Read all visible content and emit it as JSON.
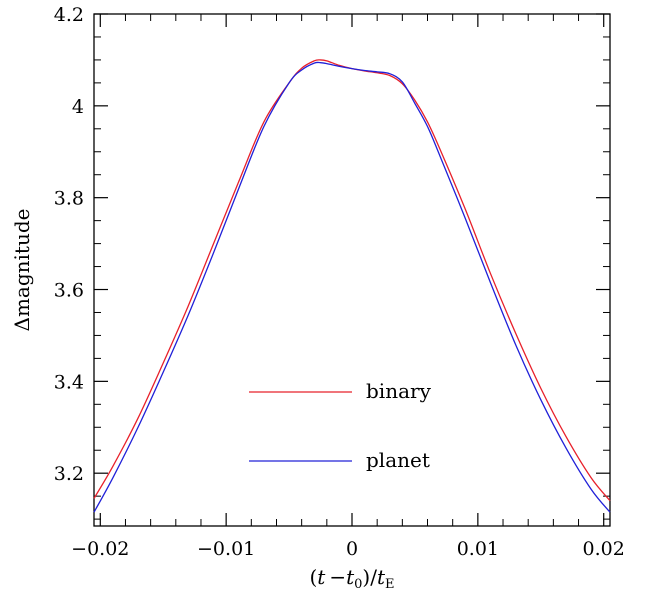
{
  "chart_data": {
    "type": "line",
    "title": "",
    "xlabel": "(t − t₀)/t_E",
    "xlabel_parts": {
      "open": "(",
      "t1": "t",
      "minus": "−",
      "t0": "t",
      "sub0": "0",
      "close": ")/",
      "tE": "t",
      "subE": "E"
    },
    "ylabel": "Δmagnitude",
    "xlim": [
      -0.0205,
      0.0205
    ],
    "ylim": [
      3.085,
      4.2
    ],
    "xticks": [
      -0.02,
      -0.01,
      0,
      0.01,
      0.02
    ],
    "xtick_labels": [
      "−0.02",
      "−0.01",
      "0",
      "0.01",
      "0.02"
    ],
    "yticks": [
      3.2,
      3.4,
      3.6,
      3.8,
      4.0,
      4.2
    ],
    "ytick_labels": [
      "3.2",
      "3.4",
      "3.6",
      "3.8",
      "4",
      "4.2"
    ],
    "grid": false,
    "legend_position": "bottom-center",
    "series": [
      {
        "name": "binary",
        "color": "#e8202a",
        "x": [
          -0.0205,
          -0.019,
          -0.017,
          -0.015,
          -0.013,
          -0.011,
          -0.009,
          -0.007,
          -0.005,
          -0.004,
          -0.003,
          -0.0025,
          -0.002,
          -0.001,
          0.0,
          0.001,
          0.002,
          0.003,
          0.004,
          0.005,
          0.006,
          0.007,
          0.009,
          0.011,
          0.013,
          0.015,
          0.017,
          0.019,
          0.0205
        ],
        "y": [
          3.145,
          3.215,
          3.32,
          3.44,
          3.565,
          3.7,
          3.835,
          3.965,
          4.05,
          4.082,
          4.098,
          4.1,
          4.098,
          4.088,
          4.081,
          4.076,
          4.072,
          4.066,
          4.048,
          4.012,
          3.965,
          3.905,
          3.775,
          3.635,
          3.505,
          3.385,
          3.28,
          3.19,
          3.14
        ]
      },
      {
        "name": "planet",
        "color": "#2020d8",
        "x": [
          -0.0205,
          -0.019,
          -0.017,
          -0.015,
          -0.013,
          -0.011,
          -0.009,
          -0.007,
          -0.005,
          -0.004,
          -0.003,
          -0.0025,
          -0.002,
          -0.001,
          0.0,
          0.001,
          0.002,
          0.003,
          0.004,
          0.005,
          0.006,
          0.007,
          0.009,
          0.011,
          0.013,
          0.015,
          0.017,
          0.019,
          0.0205
        ],
        "y": [
          3.115,
          3.19,
          3.3,
          3.42,
          3.545,
          3.68,
          3.82,
          3.955,
          4.05,
          4.078,
          4.093,
          4.094,
          4.092,
          4.086,
          4.081,
          4.077,
          4.074,
          4.07,
          4.052,
          4.005,
          3.955,
          3.89,
          3.755,
          3.615,
          3.48,
          3.36,
          3.255,
          3.165,
          3.115
        ]
      }
    ]
  }
}
